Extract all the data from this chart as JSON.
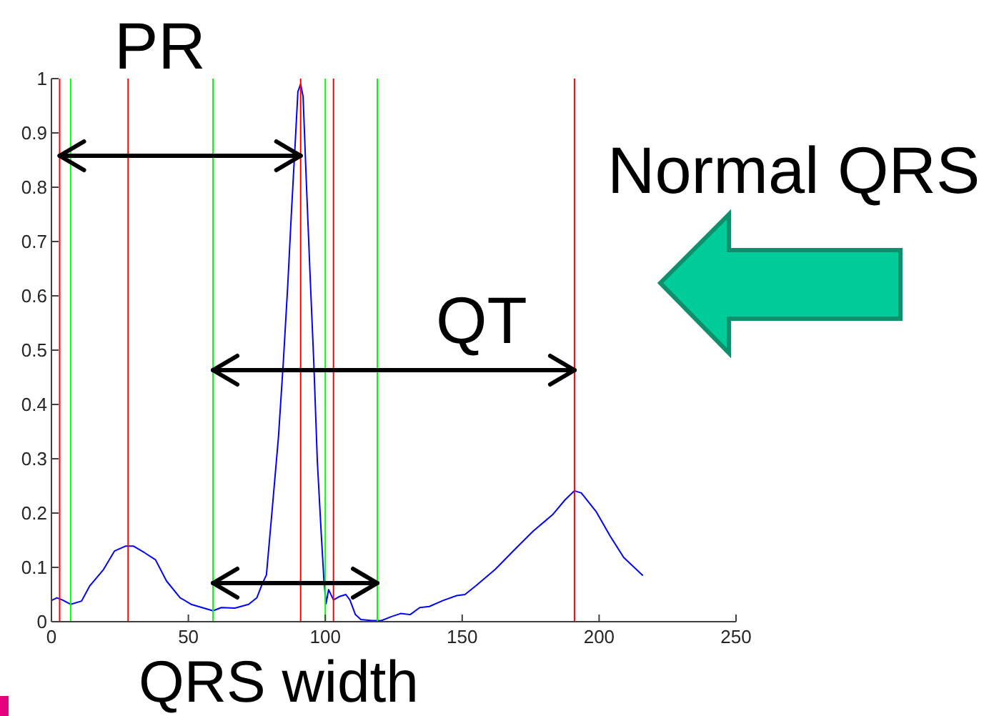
{
  "chart_data": {
    "type": "line",
    "annotations": [
      "PR",
      "QT",
      "QRS width",
      "Normal QRS"
    ],
    "x": [
      0,
      2,
      4,
      7,
      11,
      14,
      19,
      23,
      27,
      30,
      34,
      38,
      42,
      47,
      51,
      55,
      59,
      62,
      67,
      72,
      75,
      77,
      78.5,
      80.5,
      82.9,
      84.7,
      86.3,
      87.6,
      89,
      90,
      91,
      91.9,
      93,
      94.4,
      95.8,
      97.1,
      98.5,
      99.5,
      100.3,
      101.2,
      103,
      105,
      107.5,
      109,
      111,
      113,
      117,
      120.5,
      124,
      127.5,
      131,
      134.5,
      138,
      143,
      148,
      151,
      155,
      162,
      169,
      176,
      183,
      187.5,
      191,
      193.5,
      199,
      204,
      209,
      216
    ],
    "series": [
      {
        "color": "#0000ff",
        "values": [
          0.039,
          0.044,
          0.04,
          0.032,
          0.038,
          0.066,
          0.096,
          0.13,
          0.139,
          0.139,
          0.127,
          0.114,
          0.075,
          0.044,
          0.032,
          0.026,
          0.02,
          0.026,
          0.025,
          0.032,
          0.044,
          0.07,
          0.086,
          0.2,
          0.34,
          0.48,
          0.62,
          0.75,
          0.88,
          0.976,
          0.99,
          0.967,
          0.82,
          0.644,
          0.478,
          0.295,
          0.164,
          0.077,
          0.033,
          0.059,
          0.04,
          0.046,
          0.05,
          0.04,
          0.013,
          0.004,
          0.002,
          0.002,
          0.009,
          0.015,
          0.013,
          0.026,
          0.028,
          0.039,
          0.048,
          0.05,
          0.066,
          0.096,
          0.132,
          0.167,
          0.197,
          0.224,
          0.241,
          0.237,
          0.202,
          0.158,
          0.118,
          0.085
        ]
      }
    ],
    "xlim": [
      0,
      250
    ],
    "xticks": [
      0,
      50,
      100,
      150,
      200,
      250
    ],
    "ylim": [
      0,
      1
    ],
    "yticks": [
      0,
      0.1,
      0.2,
      0.3,
      0.4,
      0.5,
      0.6,
      0.7,
      0.8,
      0.9,
      1
    ],
    "ref_lines": [
      {
        "axis": "x",
        "value": 3,
        "color": "#ff0000"
      },
      {
        "axis": "x",
        "value": 7,
        "color": "#00ff00"
      },
      {
        "axis": "x",
        "value": 28,
        "color": "#ff0000"
      },
      {
        "axis": "x",
        "value": 59,
        "color": "#00ff00"
      },
      {
        "axis": "x",
        "value": 91,
        "color": "#ff0000"
      },
      {
        "axis": "x",
        "value": 100,
        "color": "#00ff00"
      },
      {
        "axis": "x",
        "value": 103,
        "color": "#ff0000"
      },
      {
        "axis": "x",
        "value": 119,
        "color": "#00ff00"
      },
      {
        "axis": "x",
        "value": 191,
        "color": "#ff0000"
      }
    ]
  }
}
